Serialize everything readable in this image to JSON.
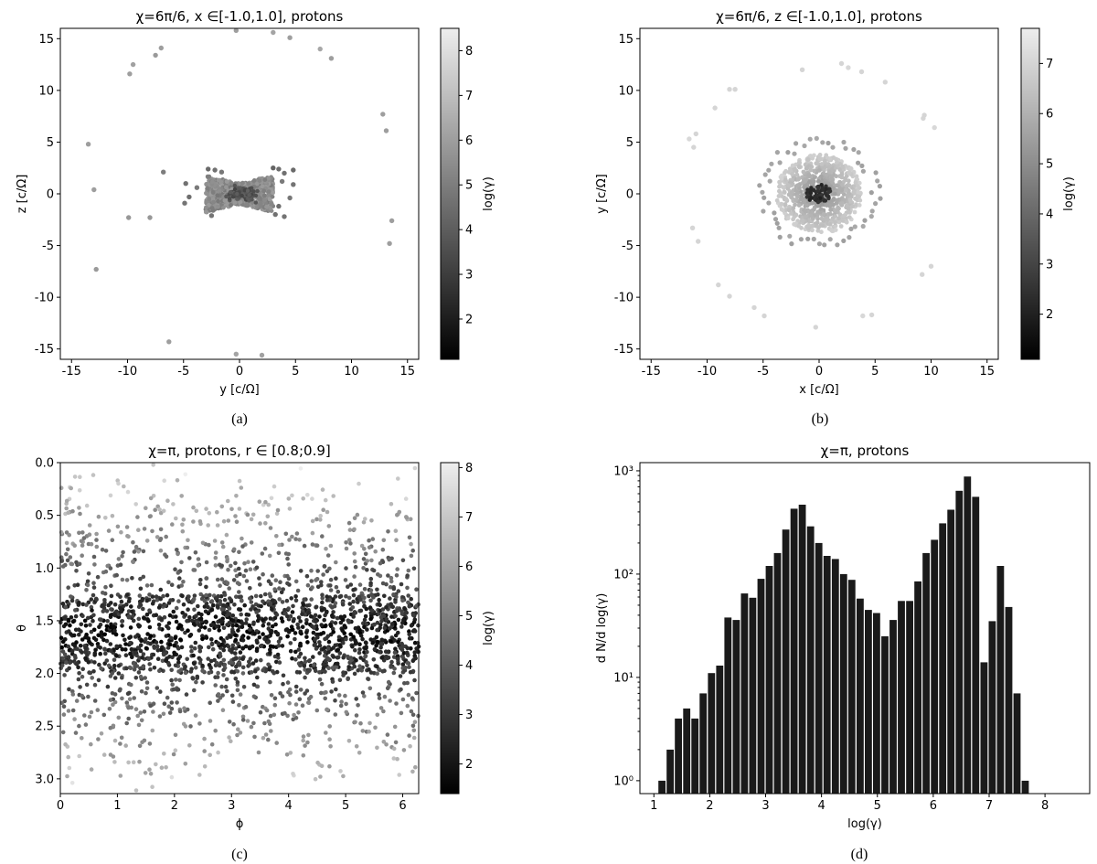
{
  "chart_data": [
    {
      "id": "a",
      "type": "scatter",
      "title": "χ=6π/6, x ∈[-1.0,1.0], protons",
      "xlabel": "y [c/Ω]",
      "ylabel": "z [c/Ω]",
      "xlim": [
        -16,
        16
      ],
      "ylim": [
        -16,
        16
      ],
      "xticks": [
        -15,
        -10,
        -5,
        0,
        5,
        10,
        15
      ],
      "yticks": [
        -15,
        -10,
        -5,
        0,
        5,
        10,
        15
      ],
      "colorbar": {
        "label": "log(γ)",
        "range": [
          1.1,
          8.5
        ],
        "ticks": [
          2,
          3,
          4,
          5,
          6,
          7,
          8
        ]
      },
      "caption": "(a)",
      "points": [
        [
          -0.3,
          15.8,
          6.0
        ],
        [
          3.0,
          15.6,
          6.2
        ],
        [
          4.5,
          15.1,
          6.0
        ],
        [
          7.2,
          14.0,
          6.3
        ],
        [
          8.2,
          13.1,
          6.0
        ],
        [
          -7.0,
          14.1,
          6.0
        ],
        [
          -7.5,
          13.4,
          5.9
        ],
        [
          -9.5,
          12.5,
          6.1
        ],
        [
          -9.8,
          11.6,
          6.0
        ],
        [
          -13.5,
          4.8,
          6.0
        ],
        [
          -13.0,
          0.4,
          6.0
        ],
        [
          -12.8,
          -7.3,
          5.9
        ],
        [
          -6.8,
          2.1,
          5.0
        ],
        [
          -9.9,
          -2.3,
          5.8
        ],
        [
          -8.0,
          -2.3,
          5.8
        ],
        [
          -6.3,
          -14.3,
          6.0
        ],
        [
          -0.3,
          -15.5,
          6.2
        ],
        [
          2.0,
          -15.6,
          6.1
        ],
        [
          12.8,
          7.7,
          6.0
        ],
        [
          13.1,
          6.1,
          6.0
        ],
        [
          13.6,
          -2.6,
          6.0
        ],
        [
          13.4,
          -4.8,
          6.0
        ],
        [
          3.0,
          2.5,
          4.2
        ],
        [
          3.5,
          2.4,
          4.5
        ],
        [
          4.0,
          2.0,
          4.6
        ],
        [
          4.8,
          2.3,
          4.4
        ],
        [
          3.8,
          1.2,
          4.9
        ],
        [
          4.8,
          0.9,
          4.7
        ],
        [
          4.5,
          -0.4,
          4.8
        ],
        [
          3.5,
          -1.2,
          4.5
        ],
        [
          4.0,
          -2.2,
          4.7
        ],
        [
          3.2,
          -2.0,
          4.6
        ],
        [
          -2.8,
          2.4,
          4.4
        ],
        [
          -2.2,
          2.3,
          4.6
        ],
        [
          -1.6,
          2.1,
          4.8
        ],
        [
          -4.8,
          1.0,
          4.6
        ],
        [
          -4.5,
          -0.3,
          4.5
        ],
        [
          -4.9,
          -0.9,
          4.7
        ],
        [
          -3.0,
          -1.5,
          4.9
        ],
        [
          -2.5,
          -2.1,
          4.7
        ],
        [
          -3.8,
          0.6,
          4.9
        ],
        [
          2.2,
          -0.7,
          4.9
        ]
      ],
      "cluster": {
        "center": [
          0,
          0
        ],
        "half_widths": [
          3,
          1.8
        ],
        "log_gamma": 6.0,
        "dense_core_log_gamma": 3.2
      }
    },
    {
      "id": "b",
      "type": "scatter",
      "title": "χ=6π/6, z ∈[-1.0,1.0], protons",
      "xlabel": "x [c/Ω]",
      "ylabel": "y [c/Ω]",
      "xlim": [
        -16,
        16
      ],
      "ylim": [
        -16,
        16
      ],
      "xticks": [
        -15,
        -10,
        -5,
        0,
        5,
        10,
        15
      ],
      "yticks": [
        -15,
        -10,
        -5,
        0,
        5,
        10,
        15
      ],
      "colorbar": {
        "label": "log(γ)",
        "range": [
          1.1,
          7.7
        ],
        "ticks": [
          2,
          3,
          4,
          5,
          6,
          7
        ]
      },
      "caption": "(b)",
      "points": [
        [
          -1.5,
          12.0,
          7.0
        ],
        [
          2.0,
          12.6,
          7.0
        ],
        [
          2.6,
          12.2,
          7.1
        ],
        [
          3.8,
          11.8,
          7.0
        ],
        [
          5.9,
          10.8,
          7.0
        ],
        [
          -7.5,
          10.1,
          7.0
        ],
        [
          -8.0,
          10.1,
          7.0
        ],
        [
          -9.3,
          8.3,
          7.0
        ],
        [
          -11.0,
          5.8,
          7.0
        ],
        [
          -11.6,
          5.3,
          7.1
        ],
        [
          -11.2,
          4.5,
          7.0
        ],
        [
          -11.3,
          -3.3,
          7.0
        ],
        [
          -10.8,
          -4.6,
          7.0
        ],
        [
          -9.0,
          -8.8,
          7.0
        ],
        [
          -8.0,
          -9.9,
          7.0
        ],
        [
          -5.8,
          -11.0,
          7.0
        ],
        [
          -4.9,
          -11.8,
          7.0
        ],
        [
          -0.3,
          -12.9,
          7.0
        ],
        [
          3.9,
          -11.8,
          7.1
        ],
        [
          4.7,
          -11.7,
          7.0
        ],
        [
          9.2,
          -7.8,
          7.0
        ],
        [
          10.0,
          -7.0,
          7.0
        ],
        [
          9.4,
          7.6,
          7.0
        ],
        [
          9.3,
          7.3,
          7.0
        ],
        [
          10.3,
          6.4,
          7.1
        ]
      ],
      "ring": {
        "radius": 5.0,
        "count": 55,
        "log_gamma": 5.5
      },
      "disk": {
        "radius": 3.8,
        "log_gamma": 7.0
      },
      "core": {
        "radius": 0.9,
        "log_gamma": 2.0
      }
    },
    {
      "id": "c",
      "type": "scatter",
      "title": "χ=π, protons, r ∈ [0.8;0.9]",
      "xlabel": "ϕ",
      "ylabel": "θ",
      "xlim": [
        0,
        6.28
      ],
      "ylim": [
        3.14,
        0
      ],
      "xticks": [
        0,
        1,
        2,
        3,
        4,
        5,
        6
      ],
      "yticks": [
        0.0,
        0.5,
        1.0,
        1.5,
        2.0,
        2.5,
        3.0
      ],
      "colorbar": {
        "label": "log(γ)",
        "range": [
          1.4,
          8.1
        ],
        "ticks": [
          2,
          3,
          4,
          5,
          6,
          7,
          8
        ]
      },
      "caption": "(c)",
      "distribution": {
        "count": 2300,
        "dense_band_theta": [
          1.25,
          2.0
        ],
        "band_log_gamma": 2.0,
        "outer_log_gamma": 6.5
      }
    },
    {
      "id": "d",
      "type": "bar",
      "title": "χ=π, protons",
      "xlabel": "log(γ)",
      "ylabel": "d N/d log(γ)",
      "yscale": "log",
      "xlim": [
        0.75,
        8.8
      ],
      "ylim": [
        0.75,
        1200
      ],
      "xticks": [
        1,
        2,
        3,
        4,
        5,
        6,
        7,
        8
      ],
      "yticks": [
        1,
        10,
        100,
        1000
      ],
      "ytick_labels": [
        "10⁰",
        "10¹",
        "10²",
        "10³"
      ],
      "caption": "(d)",
      "bin_start": 1.07,
      "bin_width": 0.1478,
      "values": [
        1,
        2,
        4,
        5,
        4,
        7,
        11,
        13,
        38,
        36,
        65,
        59,
        90,
        120,
        160,
        270,
        430,
        470,
        290,
        200,
        150,
        140,
        100,
        88,
        58,
        45,
        42,
        25,
        36,
        55,
        55,
        85,
        160,
        215,
        310,
        420,
        640,
        880,
        560,
        14,
        35,
        120,
        48,
        7,
        1
      ]
    }
  ]
}
